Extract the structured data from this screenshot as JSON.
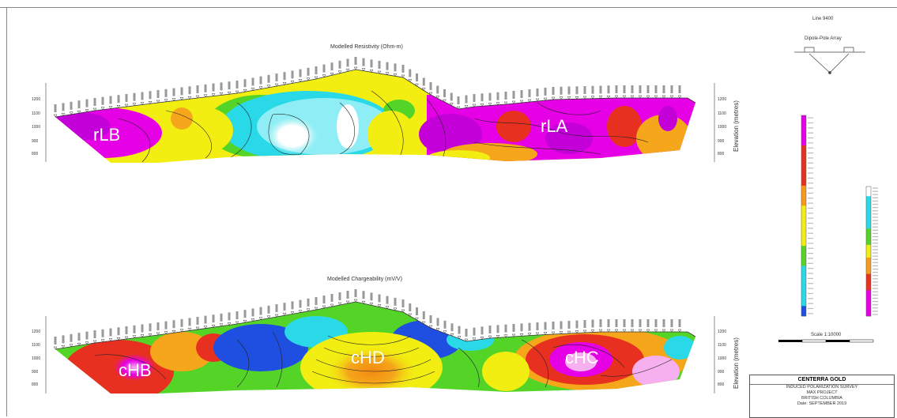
{
  "line_label": "Line 9400",
  "array_label": "Dipole-Pole Array",
  "resistivity": {
    "title": "Modelled Resistivity (Ohm-m)",
    "zones": [
      "rLB",
      "rLA"
    ],
    "elevation_label": "Elevation (metres)"
  },
  "chargeability": {
    "title": "Modelled Chargeability (mV/V)",
    "zones": [
      "cHB",
      "cHD",
      "cHC"
    ],
    "elevation_label": "Elevation (metres)"
  },
  "elevation_ticks": [
    "1200",
    "1100",
    "1000",
    "900",
    "800"
  ],
  "scale_label": "Scale 1:10000",
  "title_block": {
    "company": "CENTERRA GOLD",
    "survey": "INDUCED POLARIZATION SURVEY",
    "project": "MAX PROJECT",
    "region": "BRITISH COLUMBIA",
    "date": "Date: SEPTEMBER 2019"
  },
  "colors": {
    "magenta": "#e600e6",
    "red": "#e83020",
    "orange": "#f59a1a",
    "yellow": "#f2ee12",
    "green": "#55d428",
    "cyan": "#29d9e8",
    "blue": "#1f4fe0",
    "white": "#ffffff"
  }
}
